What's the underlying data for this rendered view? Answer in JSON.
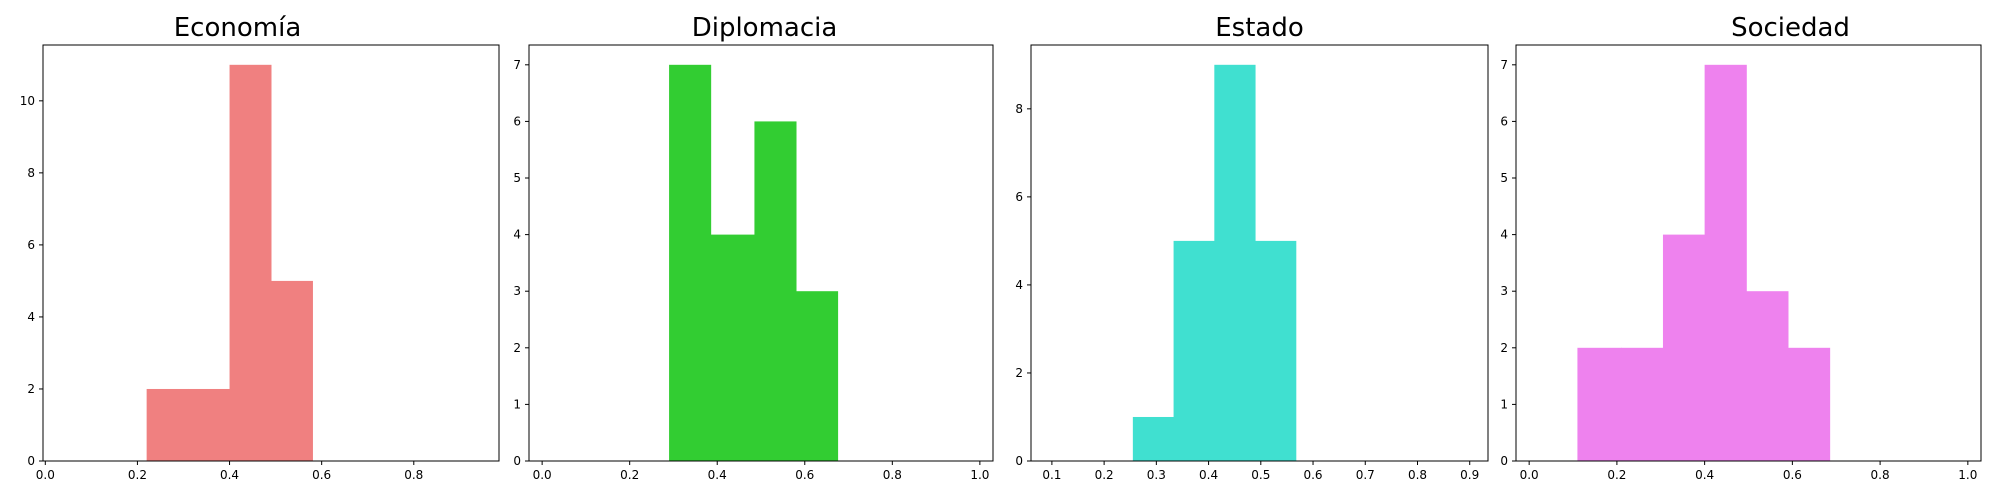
{
  "chart_data": [
    {
      "type": "bar",
      "title": "Economía",
      "xlabel": "",
      "ylabel": "",
      "color": "#f08080",
      "xlim": [
        -0.005,
        0.985
      ],
      "ylim": [
        0,
        11.55
      ],
      "xticks": [
        0.0,
        0.2,
        0.4,
        0.6,
        0.8
      ],
      "xtick_labels": [
        "0.0",
        "0.2",
        "0.4",
        "0.6",
        "0.8"
      ],
      "yticks": [
        0,
        2,
        4,
        6,
        8,
        10
      ],
      "ytick_labels": [
        "0",
        "2",
        "4",
        "6",
        "8",
        "10"
      ],
      "bins": [
        {
          "x0": 0.22,
          "x1": 0.31,
          "count": 2
        },
        {
          "x0": 0.31,
          "x1": 0.4,
          "count": 2
        },
        {
          "x0": 0.4,
          "x1": 0.49,
          "count": 11
        },
        {
          "x0": 0.49,
          "x1": 0.58,
          "count": 5
        }
      ]
    },
    {
      "type": "bar",
      "title": "Diplomacia",
      "xlabel": "",
      "ylabel": "",
      "color": "#32cd32",
      "xlim": [
        -0.03,
        1.03
      ],
      "ylim": [
        0,
        7.35
      ],
      "xticks": [
        0.0,
        0.2,
        0.4,
        0.6,
        0.8,
        1.0
      ],
      "xtick_labels": [
        "0.0",
        "0.2",
        "0.4",
        "0.6",
        "0.8",
        "1.0"
      ],
      "yticks": [
        0,
        1,
        2,
        3,
        4,
        5,
        6,
        7
      ],
      "ytick_labels": [
        "0",
        "1",
        "2",
        "3",
        "4",
        "5",
        "6",
        "7"
      ],
      "bins": [
        {
          "x0": 0.29,
          "x1": 0.385,
          "count": 7
        },
        {
          "x0": 0.385,
          "x1": 0.485,
          "count": 4
        },
        {
          "x0": 0.485,
          "x1": 0.58,
          "count": 6
        },
        {
          "x0": 0.58,
          "x1": 0.675,
          "count": 3
        }
      ]
    },
    {
      "type": "bar",
      "title": "Estado",
      "xlabel": "",
      "ylabel": "",
      "color": "#40e0d0",
      "xlim": [
        0.06,
        0.935
      ],
      "ylim": [
        0,
        9.45
      ],
      "xticks": [
        0.1,
        0.2,
        0.3,
        0.4,
        0.5,
        0.6,
        0.7,
        0.8,
        0.9
      ],
      "xtick_labels": [
        "0.1",
        "0.2",
        "0.3",
        "0.4",
        "0.5",
        "0.6",
        "0.7",
        "0.8",
        "0.9"
      ],
      "yticks": [
        0,
        2,
        4,
        6,
        8
      ],
      "ytick_labels": [
        "0",
        "2",
        "4",
        "6",
        "8"
      ],
      "bins": [
        {
          "x0": 0.255,
          "x1": 0.333,
          "count": 1
        },
        {
          "x0": 0.333,
          "x1": 0.411,
          "count": 5
        },
        {
          "x0": 0.411,
          "x1": 0.489,
          "count": 9
        },
        {
          "x0": 0.489,
          "x1": 0.567,
          "count": 5
        }
      ]
    },
    {
      "type": "bar",
      "title": "Sociedad",
      "xlabel": "",
      "ylabel": "",
      "color": "#ee82ee",
      "xlim": [
        -0.03,
        1.03
      ],
      "ylim": [
        0,
        7.35
      ],
      "xticks": [
        0.0,
        0.2,
        0.4,
        0.6,
        0.8,
        1.0
      ],
      "xtick_labels": [
        "0.0",
        "0.2",
        "0.4",
        "0.6",
        "0.8",
        "1.0"
      ],
      "yticks": [
        0,
        1,
        2,
        3,
        4,
        5,
        6,
        7
      ],
      "ytick_labels": [
        "0",
        "1",
        "2",
        "3",
        "4",
        "5",
        "6",
        "7"
      ],
      "bins": [
        {
          "x0": 0.11,
          "x1": 0.21,
          "count": 2
        },
        {
          "x0": 0.21,
          "x1": 0.305,
          "count": 2
        },
        {
          "x0": 0.305,
          "x1": 0.4,
          "count": 4
        },
        {
          "x0": 0.4,
          "x1": 0.495,
          "count": 7
        },
        {
          "x0": 0.495,
          "x1": 0.59,
          "count": 3
        },
        {
          "x0": 0.59,
          "x1": 0.685,
          "count": 2
        }
      ]
    }
  ]
}
